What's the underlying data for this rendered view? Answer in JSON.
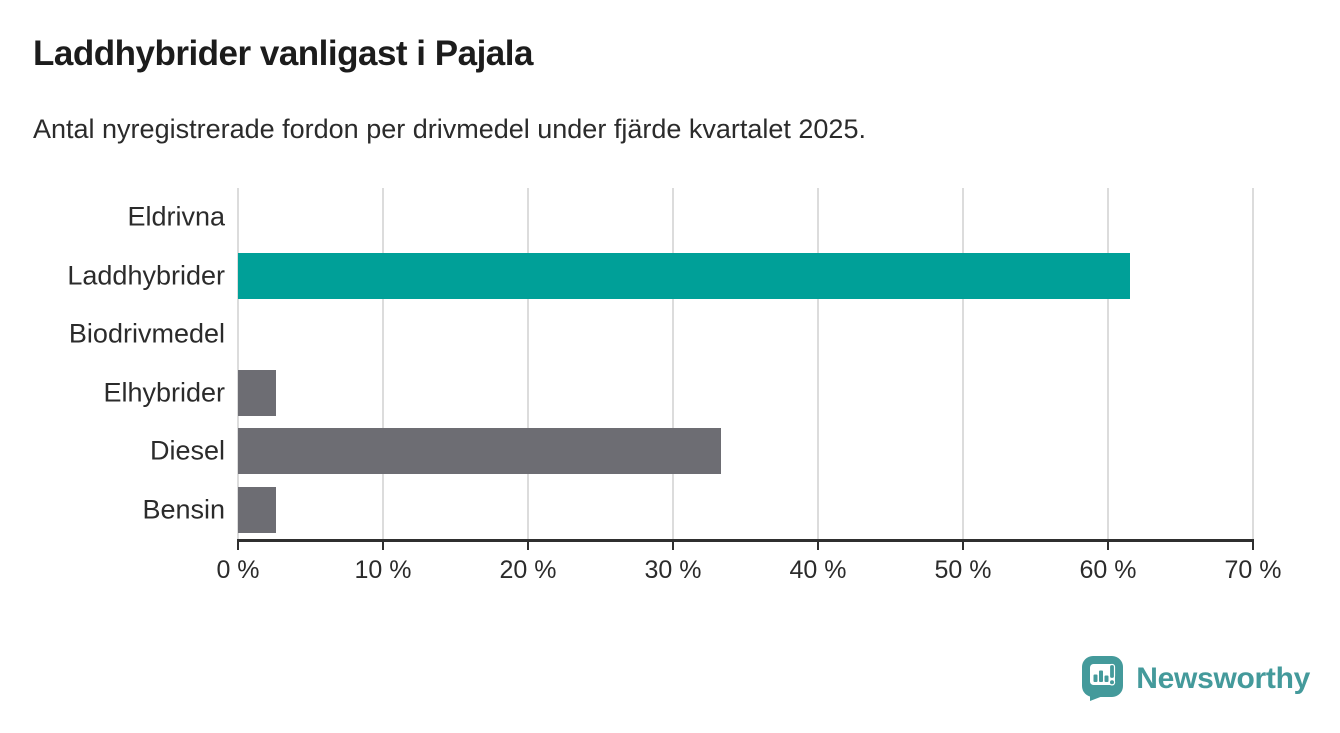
{
  "header": {
    "title": "Laddhybrider vanligast i Pajala",
    "subtitle": "Antal nyregistrerade fordon per drivmedel under fjärde kvartalet 2025."
  },
  "chart_data": {
    "type": "bar",
    "orientation": "horizontal",
    "title": "Laddhybrider vanligast i Pajala",
    "subtitle": "Antal nyregistrerade fordon per drivmedel under fjärde kvartalet 2025.",
    "categories": [
      "Eldrivna",
      "Laddhybrider",
      "Biodrivmedel",
      "Elhybrider",
      "Diesel",
      "Bensin"
    ],
    "values": [
      0,
      61.5,
      0,
      2.6,
      33.3,
      2.6
    ],
    "unit": "%",
    "xlim": [
      0,
      70
    ],
    "x_tick_values": [
      0,
      10,
      20,
      30,
      40,
      50,
      60,
      70
    ],
    "x_tick_labels": [
      "0 %",
      "10 %",
      "20 %",
      "30 %",
      "40 %",
      "50 %",
      "60 %",
      "70 %"
    ],
    "highlight_category": "Laddhybrider",
    "grid": true,
    "legend": false,
    "colors": {
      "highlight": "#00a098",
      "default": "#6d6d73",
      "gridline": "#dcdcdc",
      "axis": "#2f2f2f"
    }
  },
  "footer": {
    "brand": "Newsworthy",
    "brand_color": "#449a9b"
  }
}
